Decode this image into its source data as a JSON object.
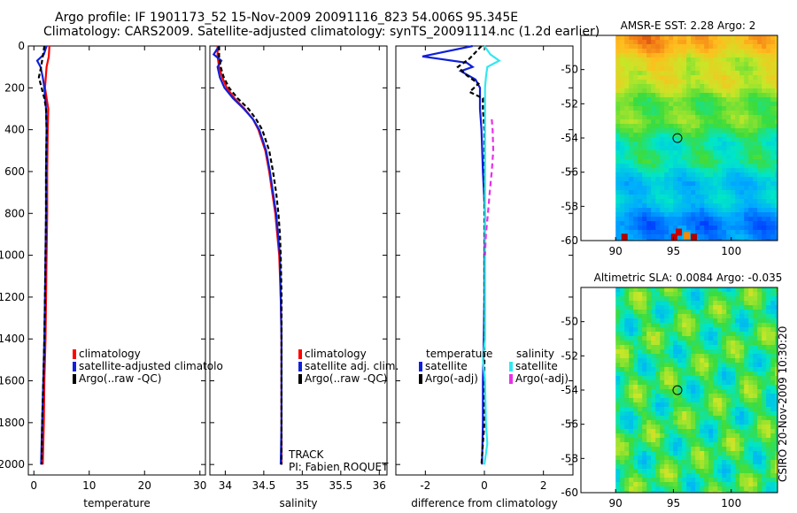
{
  "title": {
    "line1": "Argo profile: IF 1901173_52 15-Nov-2009 20091116_823 54.006S 95.345E",
    "line2": "Climatology: CARS2009. Satellite-adjusted climatology: synTS_20091114.nc (1.2d earlier)"
  },
  "stamp": "CSIRO 20-Nov-2009 10:30:20",
  "track_label": "TRACK",
  "pi_label": "PI: Fabien ROQUET",
  "colors": {
    "red": "#ff0000",
    "blue": "#1020d8",
    "black": "#000000",
    "cyan": "#30e8f0",
    "magenta": "#e830e8"
  },
  "chart_data": [
    {
      "type": "line",
      "name": "temperature",
      "xlabel": "temperature",
      "xlim": [
        -1,
        31
      ],
      "xticks": [
        0,
        10,
        20,
        30
      ],
      "ylim": [
        0,
        2050
      ],
      "yticks": [
        0,
        200,
        400,
        600,
        800,
        1000,
        1200,
        1400,
        1600,
        1800,
        2000
      ],
      "y_reversed": true,
      "legend": [
        "climatology",
        "satellite-adjusted climatolo",
        "Argo(..raw -QC)"
      ],
      "series": [
        {
          "name": "climatology",
          "color": "red",
          "dash": "",
          "depth": [
            0,
            50,
            100,
            200,
            300,
            400,
            600,
            800,
            1000,
            1200,
            1400,
            1600,
            1800,
            2000
          ],
          "values": [
            2.8,
            2.7,
            2.3,
            2.0,
            2.6,
            2.5,
            2.4,
            2.4,
            2.3,
            2.2,
            2.1,
            1.9,
            1.8,
            1.6
          ]
        },
        {
          "name": "satellite-adjusted climatology",
          "color": "blue",
          "dash": "",
          "depth": [
            0,
            40,
            70,
            100,
            150,
            200,
            300,
            400,
            600,
            800,
            1000,
            1200,
            1400,
            1600,
            1800,
            2000
          ],
          "values": [
            2.3,
            1.8,
            0.6,
            1.2,
            1.6,
            1.9,
            2.2,
            2.3,
            2.2,
            2.2,
            2.1,
            2.0,
            1.9,
            1.7,
            1.5,
            1.3
          ]
        },
        {
          "name": "Argo",
          "color": "black",
          "dash": "5,3",
          "depth": [
            0,
            50,
            100,
            150,
            200,
            250,
            300,
            400,
            600,
            800,
            1000,
            1200,
            1400,
            1600,
            1800,
            2000
          ],
          "values": [
            1.9,
            1.6,
            1.3,
            0.9,
            1.4,
            1.9,
            2.2,
            2.3,
            2.2,
            2.2,
            2.1,
            2.0,
            1.9,
            1.7,
            1.5,
            1.4
          ]
        }
      ]
    },
    {
      "type": "line",
      "name": "salinity",
      "xlabel": "salinity",
      "xlim": [
        33.8,
        36.1
      ],
      "xticks": [
        34,
        34.5,
        35,
        35.5,
        36
      ],
      "ylim": [
        0,
        2050
      ],
      "y_reversed": true,
      "legend": [
        "climatology",
        "satellite adj. clim.",
        "Argo(..raw -QC)"
      ],
      "series": [
        {
          "name": "climatology",
          "color": "red",
          "dash": "",
          "depth": [
            0,
            50,
            100,
            150,
            200,
            250,
            300,
            350,
            400,
            500,
            600,
            700,
            800,
            1000,
            1200,
            1400,
            1600,
            1800,
            2000
          ],
          "values": [
            33.9,
            33.9,
            33.92,
            33.96,
            34.02,
            34.12,
            34.25,
            34.36,
            34.43,
            34.52,
            34.57,
            34.61,
            34.65,
            34.7,
            34.72,
            34.73,
            34.73,
            34.73,
            34.73
          ]
        },
        {
          "name": "satellite adj. clim.",
          "color": "blue",
          "dash": "",
          "depth": [
            0,
            40,
            70,
            100,
            150,
            200,
            250,
            300,
            350,
            400,
            500,
            600,
            700,
            800,
            1000,
            1200,
            1400,
            1600,
            1800,
            2000
          ],
          "values": [
            33.92,
            33.85,
            33.95,
            33.9,
            33.93,
            33.99,
            34.1,
            34.24,
            34.36,
            34.44,
            34.53,
            34.58,
            34.62,
            34.66,
            34.71,
            34.72,
            34.73,
            34.73,
            34.73,
            34.72
          ]
        },
        {
          "name": "Argo",
          "color": "black",
          "dash": "5,3",
          "depth": [
            0,
            50,
            100,
            150,
            200,
            250,
            300,
            350,
            400,
            500,
            600,
            700,
            800,
            900,
            1000,
            1200,
            1400,
            1600,
            1800,
            2000
          ],
          "values": [
            33.92,
            33.92,
            33.94,
            33.98,
            34.05,
            34.16,
            34.3,
            34.4,
            34.48,
            34.57,
            34.62,
            34.66,
            34.69,
            34.71,
            34.72,
            34.73,
            34.73,
            34.73,
            34.73,
            34.73
          ]
        }
      ]
    },
    {
      "type": "line",
      "name": "difference",
      "xlabel": "difference from climatology",
      "xlim": [
        -3,
        3
      ],
      "xticks": [
        -2,
        0,
        2
      ],
      "ylim": [
        0,
        2050
      ],
      "y_reversed": true,
      "legend_left_title": "temperature",
      "legend_right_title": "salinity",
      "legend": [
        "satellite",
        "Argo(-adj)",
        "satellite",
        "Argo(-adj)"
      ],
      "series": [
        {
          "name": "temperature satellite",
          "color": "blue",
          "dash": "",
          "depth": [
            0,
            50,
            80,
            100,
            120,
            160,
            200,
            300,
            400,
            600,
            800,
            1000,
            1200,
            1400,
            1600,
            1800,
            2000
          ],
          "values": [
            -0.4,
            -2.1,
            -0.6,
            -0.4,
            -0.8,
            -0.3,
            -0.15,
            -0.15,
            -0.1,
            -0.05,
            0.02,
            0.0,
            0.0,
            -0.02,
            -0.05,
            -0.05,
            -0.08
          ]
        },
        {
          "name": "temperature Argo(-adj)",
          "color": "black",
          "dash": "5,3",
          "depth": [
            0,
            60,
            100,
            140,
            180,
            220,
            250,
            300,
            400,
            600,
            800,
            1000,
            1200,
            1400,
            1600,
            1800,
            1900,
            2000
          ],
          "values": [
            -0.1,
            -0.5,
            -0.9,
            -0.6,
            -0.2,
            -0.5,
            -0.05,
            -0.05,
            0.0,
            0.0,
            0.0,
            0.0,
            0.0,
            0.0,
            0.0,
            0.0,
            -0.05,
            -0.1
          ]
        },
        {
          "name": "salinity satellite",
          "color": "cyan",
          "dash": "",
          "depth": [
            0,
            40,
            70,
            100,
            150,
            200,
            300,
            500,
            800,
            1000,
            1200,
            1400,
            1500,
            1600,
            1800,
            1900,
            2000
          ],
          "values": [
            0.0,
            0.2,
            0.5,
            0.1,
            0.05,
            0.02,
            0.02,
            0.02,
            0.02,
            0.02,
            0.02,
            0.02,
            -0.05,
            0.02,
            0.05,
            0.1,
            0.0
          ]
        },
        {
          "name": "salinity Argo(-adj)",
          "color": "magenta",
          "dash": "6,4",
          "depth": [
            350,
            400,
            500,
            600,
            700,
            800,
            900,
            1000
          ],
          "values": [
            0.25,
            0.28,
            0.3,
            0.25,
            0.18,
            0.12,
            0.05,
            0.02
          ]
        }
      ]
    },
    {
      "type": "heatmap",
      "name": "sst_map",
      "title": "AMSR-E SST: 2.28 Argo: 2",
      "xlim": [
        87,
        104
      ],
      "xticks": [
        90,
        95,
        100
      ],
      "ylim": [
        -60,
        -48
      ],
      "yticks": [
        -50,
        -52,
        -54,
        -56,
        -58,
        -60
      ],
      "data_xrange": [
        90,
        104
      ],
      "marker": {
        "lon": 95.345,
        "lat": -54.006
      }
    },
    {
      "type": "heatmap",
      "name": "sla_map",
      "title": "Altimetric SLA: 0.0084 Argo: -0.035",
      "xlim": [
        87,
        104
      ],
      "xticks": [
        90,
        95,
        100
      ],
      "ylim": [
        -60,
        -48
      ],
      "yticks": [
        -50,
        -52,
        -54,
        -56,
        -58,
        -60
      ],
      "data_xrange": [
        90,
        104
      ],
      "marker": {
        "lon": 95.345,
        "lat": -54.006
      }
    }
  ]
}
